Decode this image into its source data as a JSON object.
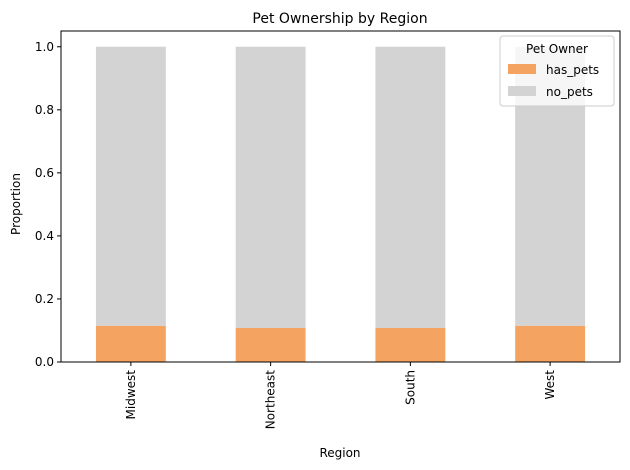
{
  "chart_data": {
    "type": "bar",
    "stacked": true,
    "title": "Pet Ownership by Region",
    "xlabel": "Region",
    "ylabel": "Proportion",
    "categories": [
      "Midwest",
      "Northeast",
      "South",
      "West"
    ],
    "series": [
      {
        "name": "has_pets",
        "values": [
          0.115,
          0.108,
          0.108,
          0.115
        ],
        "color": "#f4a460"
      },
      {
        "name": "no_pets",
        "values": [
          0.885,
          0.892,
          0.892,
          0.885
        ],
        "color": "#d3d3d3"
      }
    ],
    "ylim": [
      0,
      1.05
    ],
    "yticks": [
      "0.0",
      "0.2",
      "0.4",
      "0.6",
      "0.8",
      "1.0"
    ],
    "legend": {
      "title": "Pet Owner",
      "placement": "top-right"
    },
    "grid": false
  }
}
